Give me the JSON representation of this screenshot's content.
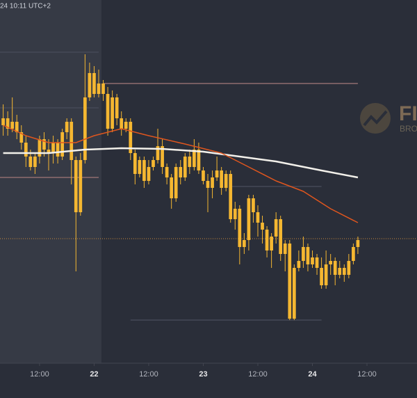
{
  "chart_data": {
    "type": "candlestick",
    "header": "24 10:11 UTC+2",
    "logo": {
      "main": "FI",
      "sub": "BROK"
    },
    "xlim": [
      -0.7,
      91
    ],
    "ylim": [
      0,
      572
    ],
    "xticks": [
      {
        "value": 8,
        "label": "12:00"
      },
      {
        "value": 20,
        "label": "22"
      },
      {
        "value": 32,
        "label": "12:00"
      },
      {
        "value": 44,
        "label": "23"
      },
      {
        "value": 56,
        "label": "12:00"
      },
      {
        "value": 68,
        "label": "24"
      },
      {
        "value": 80,
        "label": "12:00"
      }
    ],
    "color": "#f5b731",
    "x": [
      0,
      1,
      2,
      3,
      4,
      5,
      6,
      7,
      8,
      9,
      10,
      11,
      12,
      13,
      14,
      15,
      16,
      17,
      18,
      19,
      20,
      21,
      22,
      23,
      24,
      25,
      26,
      27,
      28,
      29,
      30,
      31,
      32,
      33,
      34,
      35,
      36,
      37,
      38,
      39,
      40,
      41,
      42,
      43,
      44,
      45,
      46,
      47,
      48,
      49,
      50,
      51,
      52,
      53,
      54,
      55,
      56,
      57,
      58,
      59,
      60,
      61,
      62,
      63,
      64,
      65,
      66,
      67,
      68,
      69,
      70,
      71,
      72,
      73,
      74,
      75,
      76,
      77,
      78
    ],
    "open": [
      392,
      402,
      387,
      397,
      382,
      367,
      347,
      332,
      347,
      372,
      357,
      352,
      367,
      347,
      382,
      397,
      342,
      267,
      342,
      432,
      467,
      437,
      452,
      437,
      387,
      432,
      402,
      387,
      397,
      352,
      322,
      342,
      312,
      332,
      342,
      362,
      332,
      317,
      287,
      332,
      317,
      347,
      332,
      357,
      327,
      312,
      302,
      317,
      327,
      302,
      322,
      257,
      272,
      217,
      227,
      287,
      267,
      252,
      242,
      212,
      232,
      257,
      207,
      222,
      114,
      187,
      197,
      217,
      192,
      202,
      187,
      162,
      192,
      197,
      177,
      187,
      177,
      197,
      217
    ],
    "high": [
      422,
      412,
      432,
      407,
      392,
      377,
      357,
      352,
      377,
      382,
      372,
      377,
      372,
      387,
      402,
      402,
      347,
      352,
      494,
      482,
      477,
      472,
      457,
      447,
      442,
      437,
      412,
      402,
      402,
      357,
      347,
      347,
      342,
      347,
      387,
      372,
      337,
      322,
      337,
      342,
      352,
      357,
      372,
      367,
      332,
      322,
      327,
      347,
      332,
      327,
      327,
      282,
      277,
      237,
      292,
      292,
      277,
      262,
      247,
      237,
      267,
      262,
      227,
      227,
      192,
      212,
      232,
      222,
      212,
      207,
      202,
      212,
      207,
      202,
      197,
      192,
      207,
      222,
      232
    ],
    "low": [
      377,
      377,
      382,
      372,
      357,
      332,
      327,
      322,
      337,
      347,
      327,
      337,
      337,
      342,
      372,
      307,
      182,
      262,
      337,
      427,
      432,
      432,
      427,
      377,
      382,
      392,
      377,
      382,
      342,
      307,
      317,
      302,
      307,
      327,
      337,
      322,
      307,
      272,
      282,
      307,
      312,
      322,
      327,
      322,
      307,
      267,
      287,
      312,
      292,
      297,
      252,
      242,
      192,
      207,
      212,
      252,
      232,
      222,
      202,
      187,
      222,
      197,
      182,
      112,
      112,
      182,
      187,
      182,
      187,
      177,
      157,
      157,
      177,
      162,
      172,
      167,
      172,
      192,
      207
    ],
    "close": [
      402,
      387,
      397,
      382,
      367,
      347,
      332,
      347,
      372,
      357,
      352,
      367,
      347,
      382,
      397,
      342,
      267,
      342,
      432,
      467,
      437,
      452,
      437,
      387,
      432,
      402,
      387,
      397,
      352,
      322,
      342,
      312,
      332,
      342,
      362,
      332,
      317,
      287,
      332,
      317,
      347,
      332,
      357,
      327,
      312,
      302,
      317,
      327,
      302,
      322,
      257,
      272,
      217,
      227,
      287,
      267,
      252,
      242,
      212,
      232,
      257,
      207,
      222,
      114,
      187,
      197,
      217,
      192,
      202,
      187,
      162,
      192,
      197,
      177,
      187,
      177,
      197,
      217,
      227
    ],
    "lines": [
      {
        "color": "#f2f0ea",
        "width": 2.5,
        "x": [
          0,
          10,
          18,
          26,
          35,
          44,
          52,
          60,
          70,
          78
        ],
        "values": [
          352,
          352,
          357,
          359,
          358,
          354,
          347,
          340,
          327,
          317
        ]
      },
      {
        "color": "#e0561e",
        "width": 1.5,
        "x": [
          0,
          5,
          10,
          16,
          20,
          26,
          32,
          40,
          48,
          54,
          60,
          66,
          72,
          78
        ],
        "values": [
          392,
          377,
          367,
          367,
          377,
          387,
          377,
          365,
          352,
          332,
          312,
          297,
          272,
          252
        ]
      }
    ],
    "levels": [
      {
        "value": 452,
        "from": 22,
        "to": 78,
        "color": "#8f6d6f"
      },
      {
        "value": 317,
        "from": -0.7,
        "to": 21,
        "color": "#8f6d6f"
      },
      {
        "value": 417,
        "from": -0.7,
        "to": 21,
        "color": "#454957"
      },
      {
        "value": 497,
        "from": -0.7,
        "to": 21,
        "color": "#454957"
      },
      {
        "value": 304,
        "from": 50,
        "to": 70,
        "color": "#454957"
      },
      {
        "value": 112,
        "from": 28,
        "to": 70,
        "color": "#454957"
      },
      {
        "value": 229,
        "from": -0.7,
        "to": 91,
        "color": "#c98a3c",
        "dash": true
      }
    ],
    "highlight": [
      -0.7,
      21.6
    ]
  }
}
